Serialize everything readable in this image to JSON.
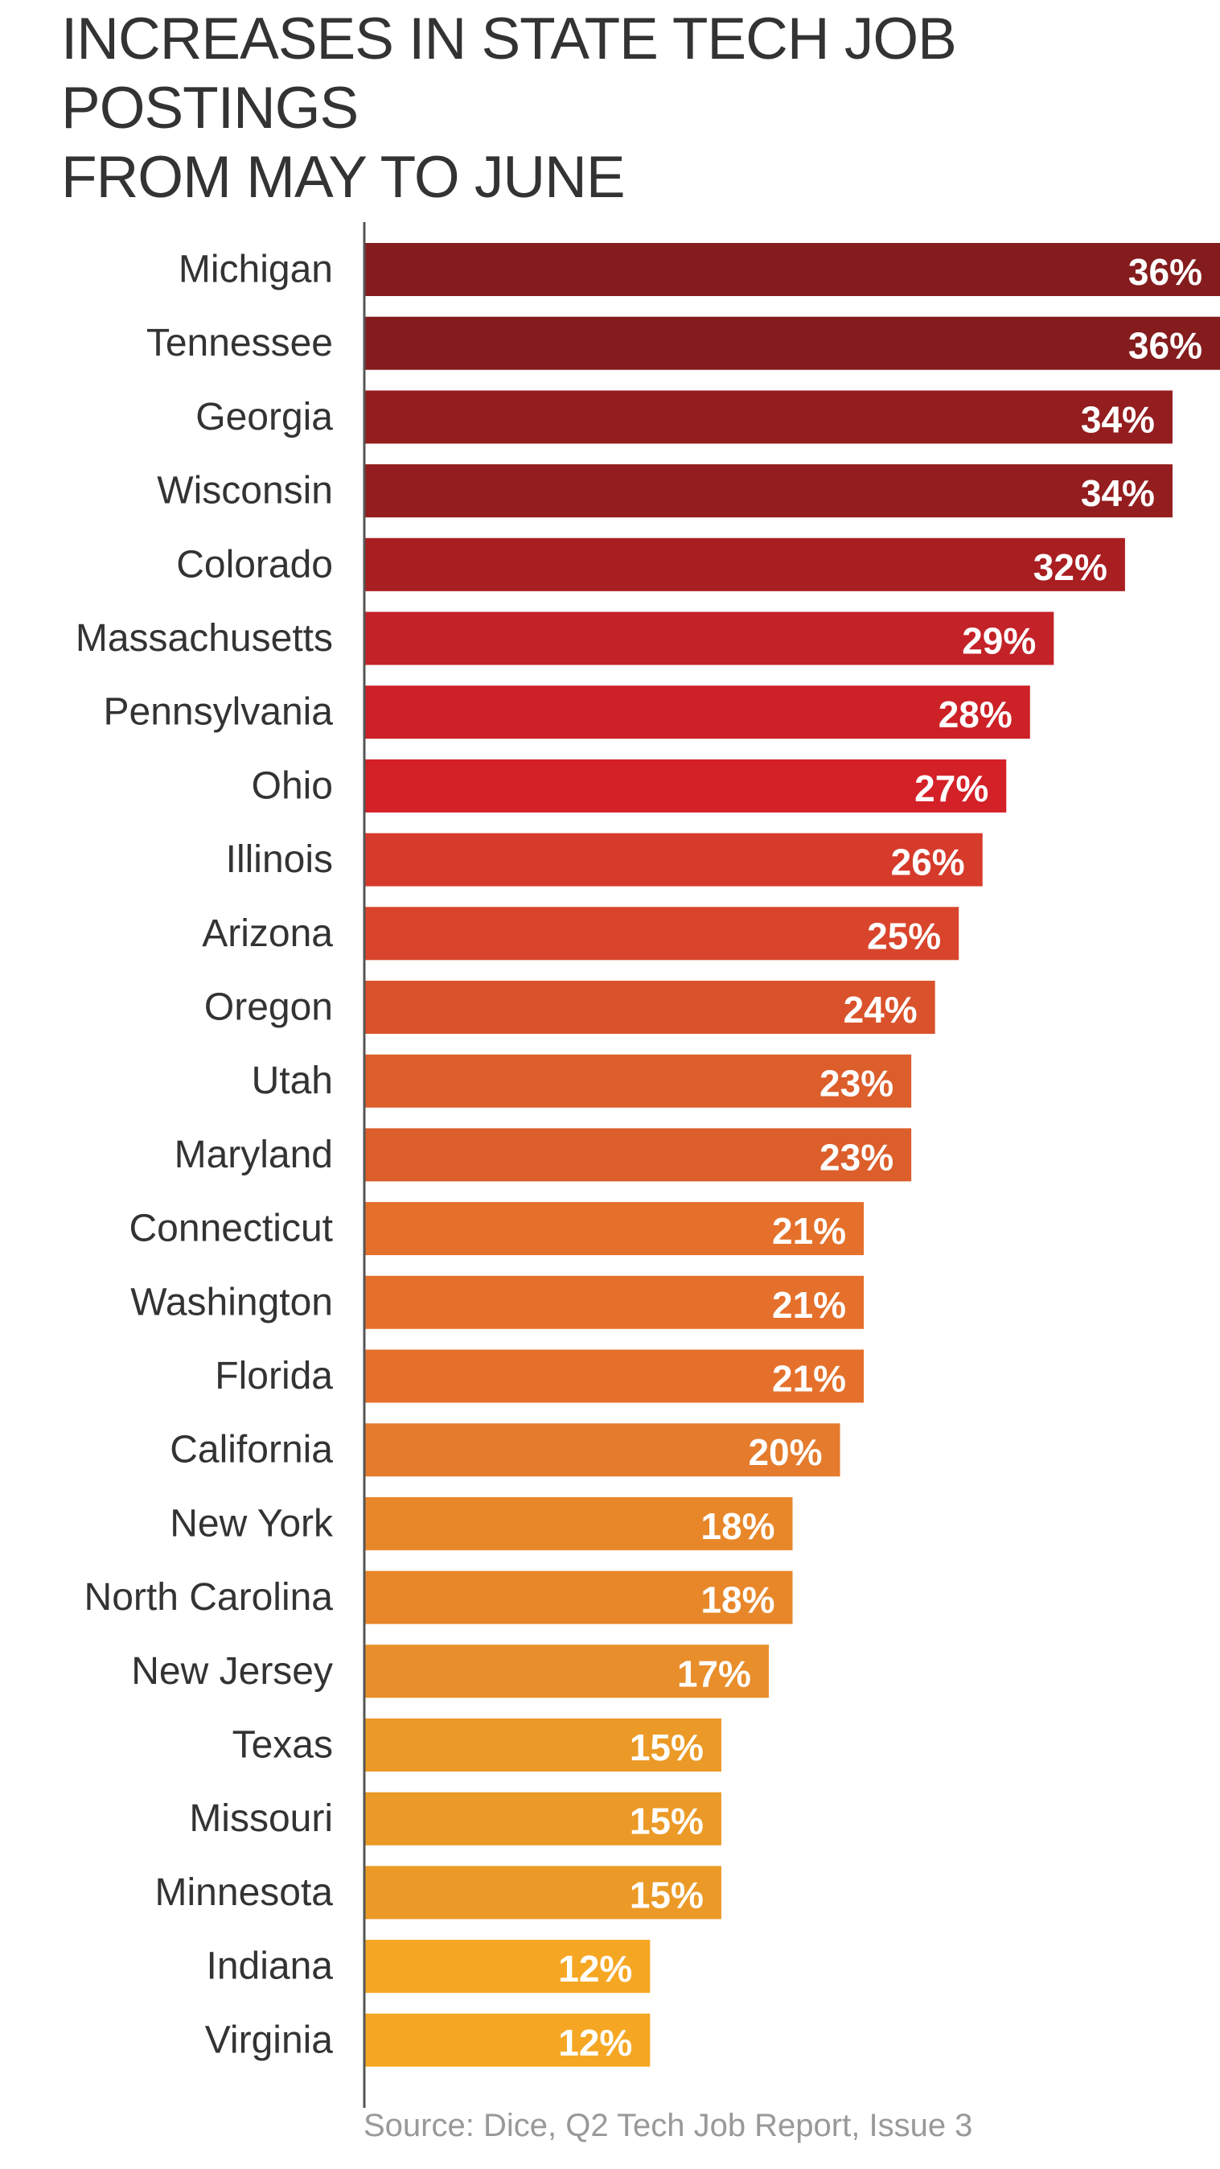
{
  "chart_data": {
    "type": "bar",
    "orientation": "horizontal",
    "title": "INCREASES IN STATE TECH JOB POSTINGS\nFROM MAY TO JUNE",
    "categories": [
      "Michigan",
      "Tennessee",
      "Georgia",
      "Wisconsin",
      "Colorado",
      "Massachusetts",
      "Pennsylvania",
      "Ohio",
      "Illinois",
      "Arizona",
      "Oregon",
      "Utah",
      "Maryland",
      "Connecticut",
      "Washington",
      "Florida",
      "California",
      "New York",
      "North Carolina",
      "New Jersey",
      "Texas",
      "Missouri",
      "Minnesota",
      "Indiana",
      "Virginia"
    ],
    "values": [
      36,
      36,
      34,
      34,
      32,
      29,
      28,
      27,
      26,
      25,
      24,
      23,
      23,
      21,
      21,
      21,
      20,
      18,
      18,
      17,
      15,
      15,
      15,
      12,
      12
    ],
    "value_labels": [
      "36%",
      "36%",
      "34%",
      "34%",
      "32%",
      "29%",
      "28%",
      "27%",
      "26%",
      "25%",
      "24%",
      "23%",
      "23%",
      "21%",
      "21%",
      "21%",
      "20%",
      "18%",
      "18%",
      "17%",
      "15%",
      "15%",
      "15%",
      "12%",
      "12%"
    ],
    "colors": [
      "#841c1e",
      "#841c1e",
      "#941d1f",
      "#941d1f",
      "#a91e20",
      "#c32228",
      "#cc2127",
      "#d42027",
      "#d63a2b",
      "#d9452c",
      "#da522b",
      "#dc5e2b",
      "#dc5e2b",
      "#e5702b",
      "#e5702b",
      "#e5702b",
      "#e57b2d",
      "#e8872a",
      "#e8872a",
      "#e88e2a",
      "#eb9a27",
      "#eb9a27",
      "#eb9a27",
      "#f5a723",
      "#f5a723"
    ],
    "axis_color": "#555555",
    "xlim": [
      0,
      36
    ],
    "grid": false,
    "legend": "none",
    "source": "Source: Dice, Q2 Tech Job Report, Issue 3"
  }
}
